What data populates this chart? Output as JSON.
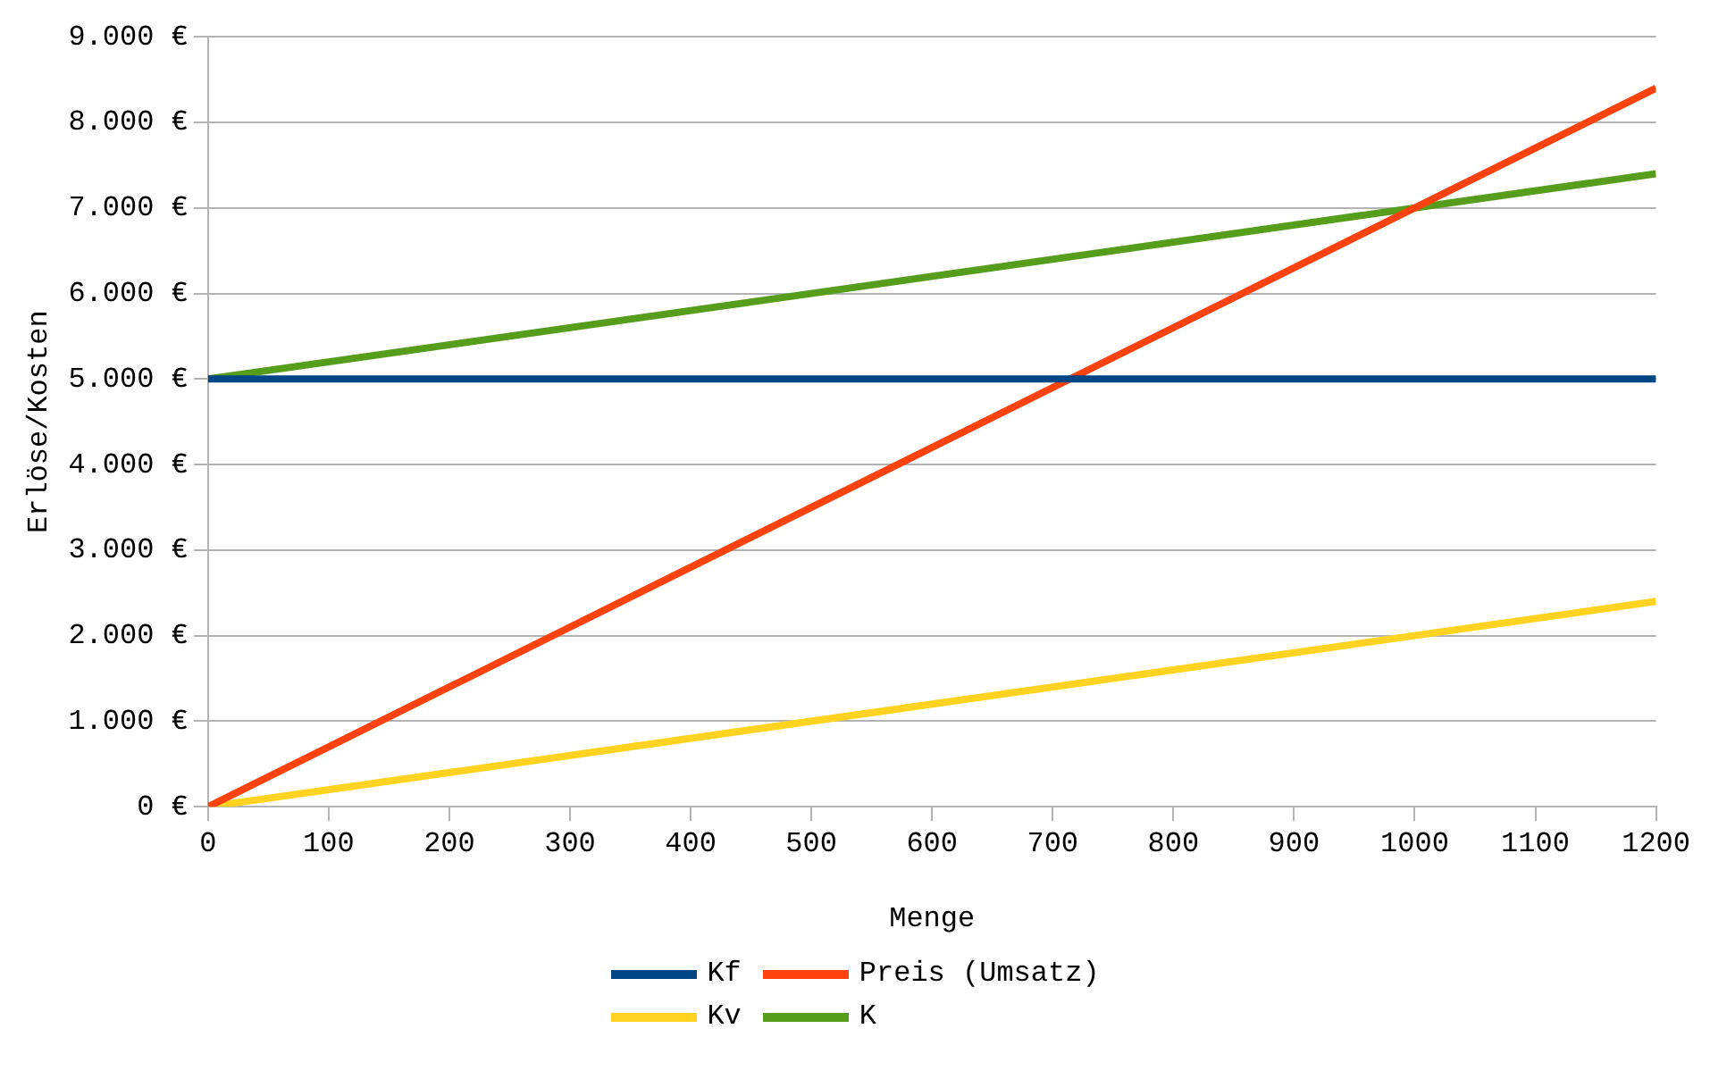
{
  "chart_data": {
    "type": "line",
    "xlabel": "Menge",
    "ylabel": "Erlöse/Kosten",
    "x": [
      0,
      1200
    ],
    "series": [
      {
        "name": "Kf",
        "color": "#004586",
        "values": [
          5000,
          5000
        ]
      },
      {
        "name": "Preis (Umsatz)",
        "color": "#ff420e",
        "values": [
          0,
          8400
        ]
      },
      {
        "name": "Kv",
        "color": "#ffd320",
        "values": [
          0,
          2400
        ]
      },
      {
        "name": "K",
        "color": "#579d1c",
        "values": [
          5000,
          7400
        ]
      }
    ],
    "xlim": [
      0,
      1200
    ],
    "xticks": [
      0,
      100,
      200,
      300,
      400,
      500,
      600,
      700,
      800,
      900,
      1000,
      1100,
      1200
    ],
    "ylim": [
      0,
      9000
    ],
    "yticks": [
      {
        "value": 0,
        "label": "0 €"
      },
      {
        "value": 1000,
        "label": "1.000 €"
      },
      {
        "value": 2000,
        "label": "2.000 €"
      },
      {
        "value": 3000,
        "label": "3.000 €"
      },
      {
        "value": 4000,
        "label": "4.000 €"
      },
      {
        "value": 5000,
        "label": "5.000 €"
      },
      {
        "value": 6000,
        "label": "6.000 €"
      },
      {
        "value": 7000,
        "label": "7.000 €"
      },
      {
        "value": 8000,
        "label": "8.000 €"
      },
      {
        "value": 9000,
        "label": "9.000 €"
      }
    ],
    "grid": "y",
    "legend": "bottom",
    "marker": "none",
    "line_style": "solid"
  }
}
